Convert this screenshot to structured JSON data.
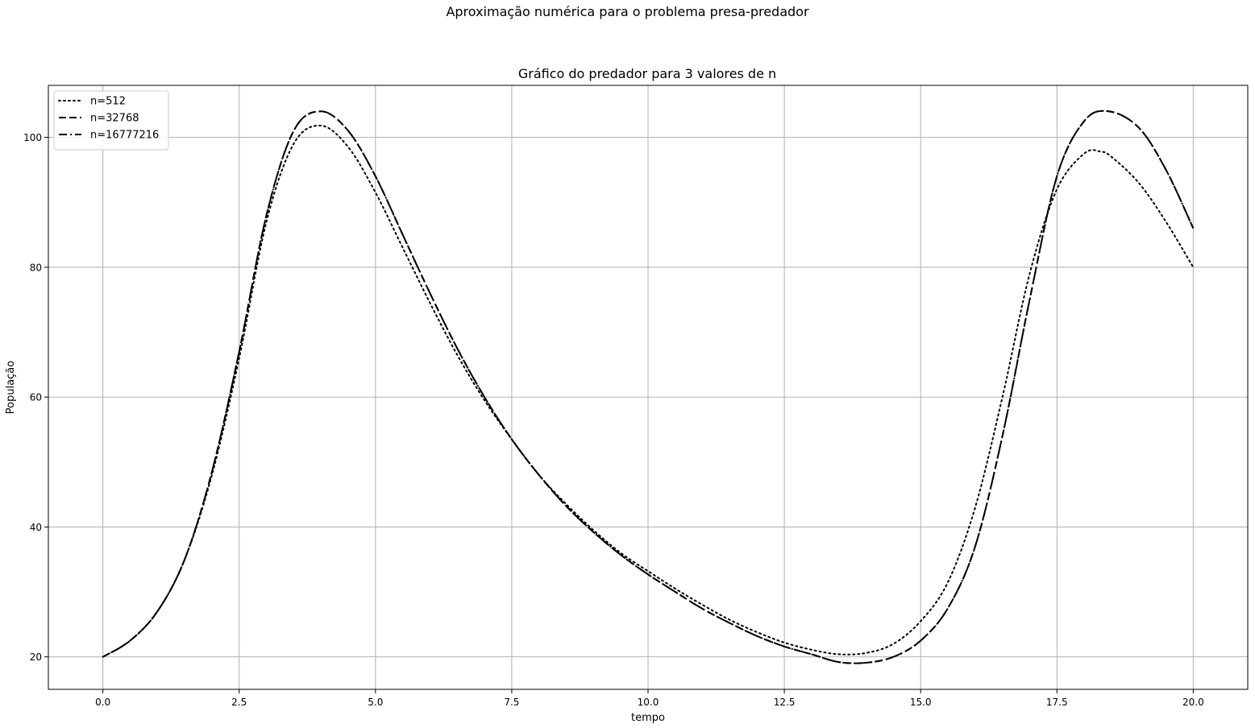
{
  "figure": {
    "suptitle": "Aproximação numérica para o problema presa-predador"
  },
  "chart_data": {
    "type": "line",
    "title": "Gráfico do predador para 3 valores de n",
    "xlabel": "tempo",
    "ylabel": "População",
    "xlim": [
      -1.0,
      21.0
    ],
    "ylim": [
      15,
      108
    ],
    "xticks": [
      0.0,
      2.5,
      5.0,
      7.5,
      10.0,
      12.5,
      15.0,
      17.5,
      20.0
    ],
    "xtick_labels": [
      "0.0",
      "2.5",
      "5.0",
      "7.5",
      "10.0",
      "12.5",
      "15.0",
      "17.5",
      "20.0"
    ],
    "yticks": [
      20,
      40,
      60,
      80,
      100
    ],
    "ytick_labels": [
      "20",
      "40",
      "60",
      "80",
      "100"
    ],
    "grid": true,
    "legend_position": "top-left",
    "series": [
      {
        "name": "n=512",
        "style": "dotted",
        "color": "#000000",
        "x": [
          0,
          0.5,
          1.0,
          1.5,
          2.0,
          2.5,
          3.0,
          3.5,
          4.0,
          4.5,
          5.0,
          5.5,
          6.0,
          6.5,
          7.0,
          7.5,
          8.0,
          8.5,
          9.0,
          9.5,
          10.0,
          10.5,
          11.0,
          11.5,
          12.0,
          12.5,
          13.0,
          13.5,
          14.0,
          14.5,
          15.0,
          15.5,
          16.0,
          16.5,
          17.0,
          17.5,
          18.0,
          18.3,
          18.5,
          19.0,
          19.5,
          20.0
        ],
        "y": [
          20,
          22.5,
          27,
          35,
          48,
          66,
          87,
          99,
          101.8,
          98.5,
          91.5,
          83,
          74.5,
          66.5,
          59.5,
          53.5,
          48,
          43.5,
          39.5,
          36,
          33.2,
          30.5,
          28,
          25.7,
          23.8,
          22.2,
          21.1,
          20.4,
          20.6,
          22,
          25.5,
          31.5,
          43,
          60,
          79,
          92,
          97.5,
          97.8,
          97,
          93,
          87,
          80
        ]
      },
      {
        "name": "n=32768",
        "style": "dashed",
        "color": "#000000",
        "x": [
          0,
          0.5,
          1.0,
          1.5,
          2.0,
          2.5,
          3.0,
          3.5,
          4.0,
          4.5,
          5.0,
          5.5,
          6.0,
          6.5,
          7.0,
          7.5,
          8.0,
          8.5,
          9.0,
          9.5,
          10.0,
          10.5,
          11.0,
          11.5,
          12.0,
          12.5,
          13.0,
          13.5,
          14.0,
          14.5,
          15.0,
          15.5,
          16.0,
          16.5,
          17.0,
          17.5,
          18.0,
          18.45,
          19.0,
          19.5,
          20.0
        ],
        "y": [
          20,
          22.5,
          27,
          35,
          48.5,
          67,
          88,
          101,
          104,
          101,
          94,
          85,
          76,
          67.5,
          60,
          53.5,
          48,
          43.2,
          39.2,
          35.7,
          32.7,
          30,
          27.4,
          25.2,
          23.2,
          21.6,
          20.4,
          19.2,
          19.1,
          20,
          22.5,
          27.5,
          37,
          54,
          75,
          94,
          102.5,
          104,
          101.5,
          95,
          86
        ]
      },
      {
        "name": "n=16777216",
        "style": "dashdot",
        "color": "#000000",
        "x": [
          0,
          0.5,
          1.0,
          1.5,
          2.0,
          2.5,
          3.0,
          3.5,
          4.0,
          4.5,
          5.0,
          5.5,
          6.0,
          6.5,
          7.0,
          7.5,
          8.0,
          8.5,
          9.0,
          9.5,
          10.0,
          10.5,
          11.0,
          11.5,
          12.0,
          12.5,
          13.0,
          13.5,
          14.0,
          14.5,
          15.0,
          15.5,
          16.0,
          16.5,
          17.0,
          17.5,
          18.0,
          18.45,
          19.0,
          19.5,
          20.0
        ],
        "y": [
          20,
          22.5,
          27,
          35,
          48.5,
          67,
          88,
          101,
          104,
          101,
          94,
          85,
          76,
          67.5,
          60,
          53.5,
          48,
          43.2,
          39.2,
          35.7,
          32.7,
          30,
          27.4,
          25.2,
          23.2,
          21.6,
          20.4,
          19.2,
          19.1,
          20,
          22.5,
          27.5,
          37,
          54,
          75,
          94,
          102.5,
          104,
          101.5,
          95,
          86
        ]
      }
    ]
  }
}
